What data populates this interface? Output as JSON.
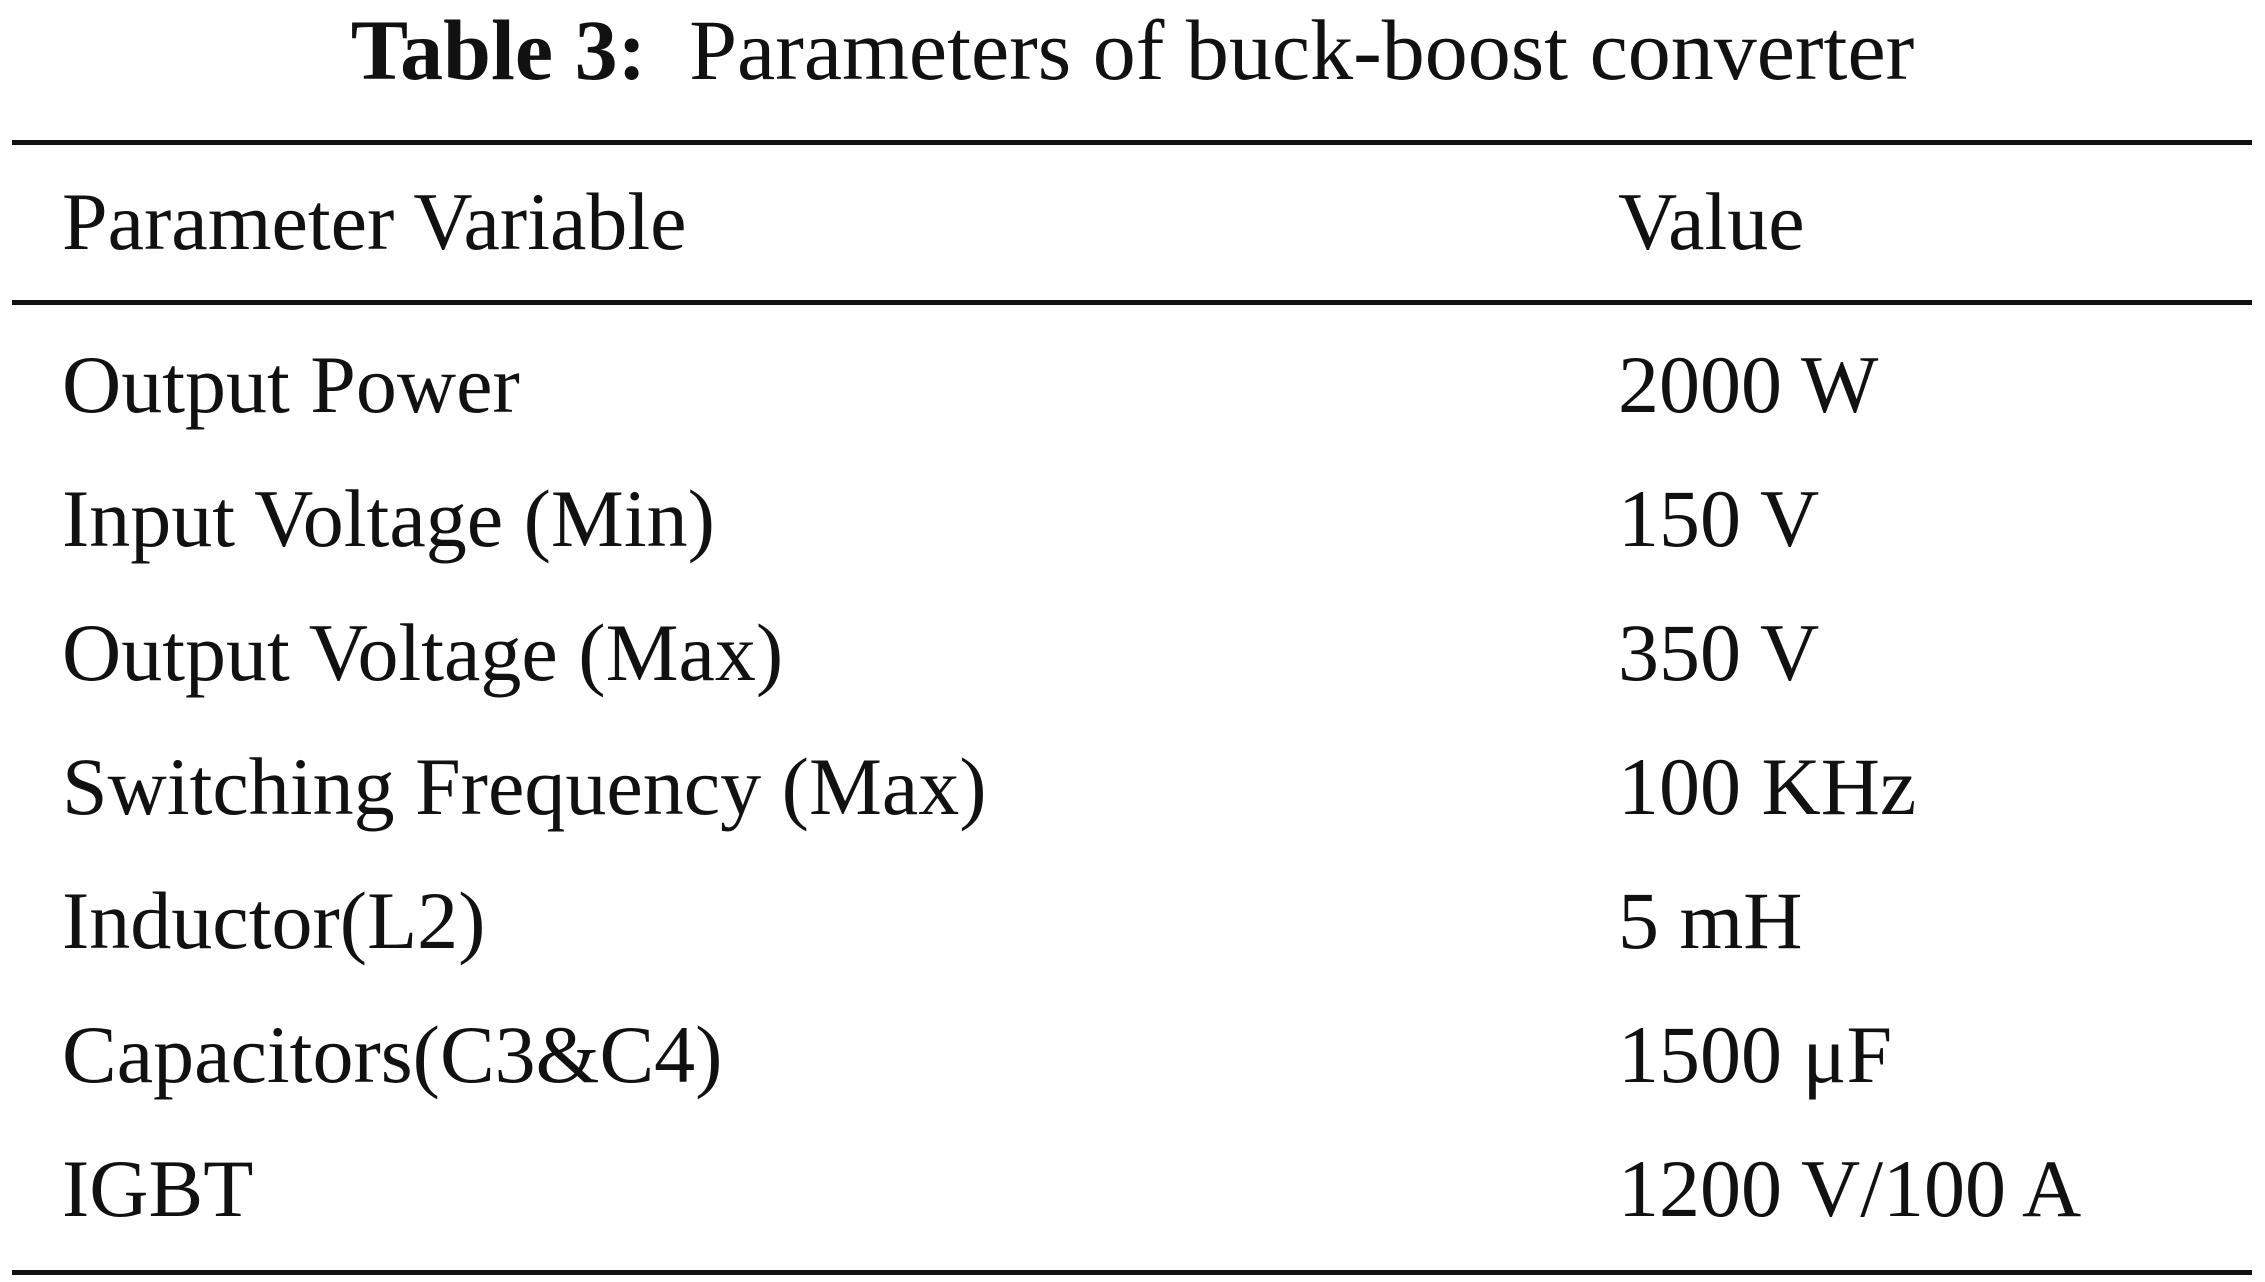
{
  "caption": {
    "label": "Table 3:",
    "title": "Parameters of buck-boost converter"
  },
  "table": {
    "headers": {
      "parameter": "Parameter Variable",
      "value": "Value"
    },
    "rows": [
      {
        "parameter": "Output Power",
        "value": "2000 W"
      },
      {
        "parameter": "Input Voltage (Min)",
        "value": "150 V"
      },
      {
        "parameter": "Output Voltage (Max)",
        "value": "350 V"
      },
      {
        "parameter": "Switching Frequency (Max)",
        "value": "100 KHz"
      },
      {
        "parameter": "Inductor(L2)",
        "value": "5 mH"
      },
      {
        "parameter": "Capacitors(C3&C4)",
        "value": "1500 μF"
      },
      {
        "parameter": "IGBT",
        "value": "1200 V/100 A"
      }
    ]
  }
}
